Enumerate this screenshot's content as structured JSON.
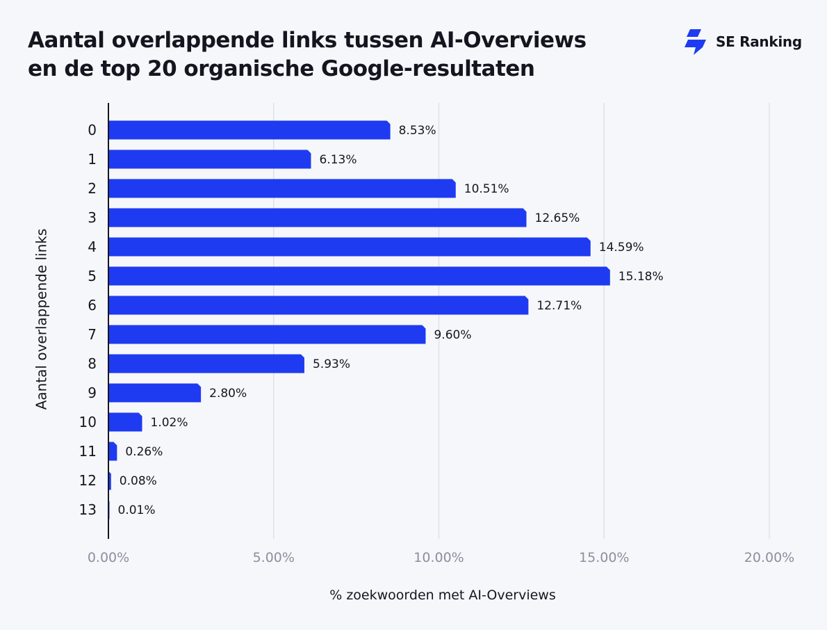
{
  "header": {
    "title_line1": "Aantal overlappende links tussen AI-Overviews",
    "title_line2": "en de top 20 organische Google-resultaten",
    "brand": "SE Ranking"
  },
  "chart_data": {
    "type": "bar",
    "orientation": "horizontal",
    "categories": [
      "0",
      "1",
      "2",
      "3",
      "4",
      "5",
      "6",
      "7",
      "8",
      "9",
      "10",
      "11",
      "12",
      "13"
    ],
    "values": [
      8.53,
      6.13,
      10.51,
      12.65,
      14.59,
      15.18,
      12.71,
      9.6,
      5.93,
      2.8,
      1.02,
      0.26,
      0.08,
      0.01
    ],
    "value_labels": [
      "8.53%",
      "6.13%",
      "10.51%",
      "12.65%",
      "14.59%",
      "15.18%",
      "12.71%",
      "9.60%",
      "5.93%",
      "2.80%",
      "1.02%",
      "0.26%",
      "0.08%",
      "0.01%"
    ],
    "xlabel": "% zoekwoorden met AI-Overviews",
    "ylabel": "Aantal overlappende links",
    "xlim": [
      0,
      20
    ],
    "xticks": [
      0,
      5,
      10,
      15,
      20
    ],
    "xtick_labels": [
      "0.00%",
      "5.00%",
      "10.00%",
      "15.00%",
      "20.00%"
    ],
    "grid": "vertical",
    "colors": {
      "bar": "#1e3bf2",
      "grid": "#dfe1ea",
      "axis": "#15151f",
      "tick_label": "#8a8f9c"
    }
  }
}
